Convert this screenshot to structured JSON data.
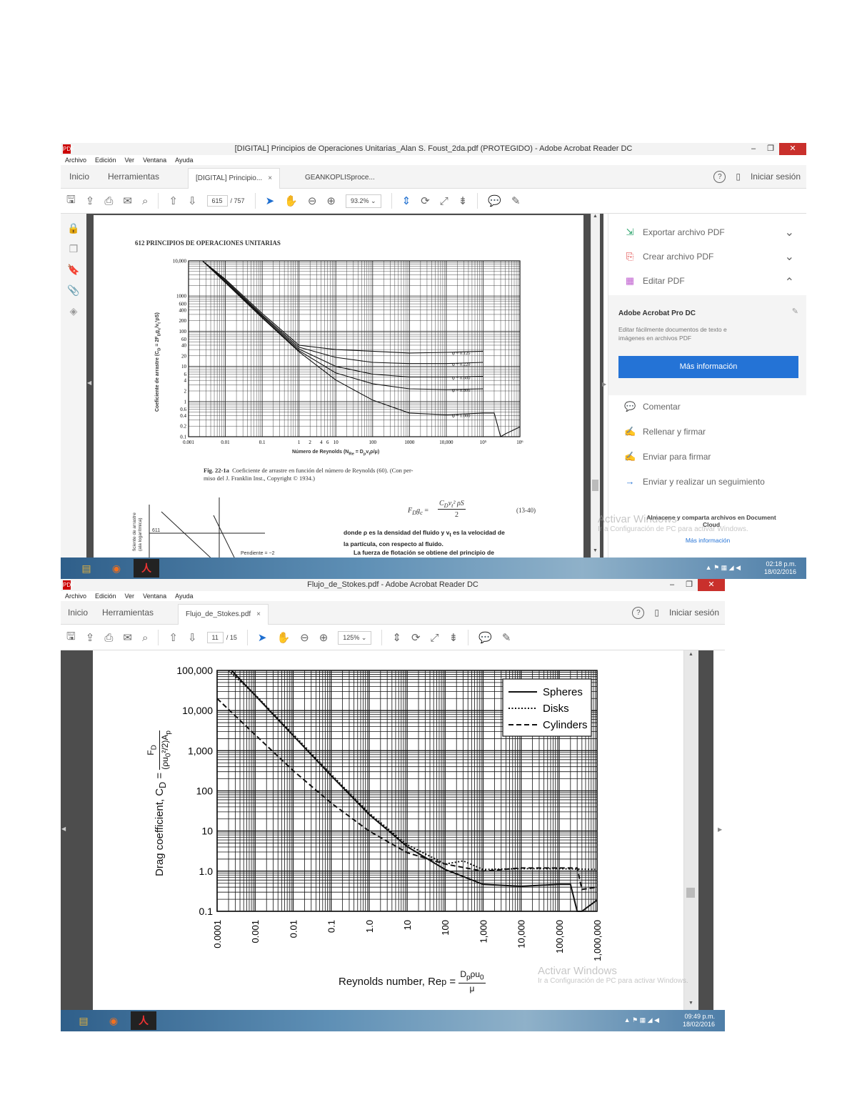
{
  "window1": {
    "title": "[DIGITAL] Principios de Operaciones Unitarias_Alan S. Foust_2da.pdf (PROTEGIDO) - Adobe Acrobat Reader DC",
    "menu": [
      "Archivo",
      "Edición",
      "Ver",
      "Ventana",
      "Ayuda"
    ],
    "nav": {
      "home": "Inicio",
      "tools": "Herramientas"
    },
    "tabs": [
      {
        "label": "[DIGITAL] Principio...",
        "close": "×"
      },
      {
        "label": "GEANKOPLISproce..."
      }
    ],
    "signin": "Iniciar sesión",
    "help": "?",
    "page_current": "615",
    "page_total": "/ 757",
    "zoom": "93.2%",
    "page": {
      "header": "612   PRINCIPIOS DE OPERACIONES UNITARIAS",
      "ylabel": "Coeficiente de arrastre (C",
      "ylabel_sub": "D",
      "ylabel_rest": " = 2F",
      "ylabel_frac": "D",
      "ylabel_end": "g",
      "ylabel_c": "c",
      "ylabel_den": "v",
      "ylabel_den2": "t",
      "ylabel_den3": "²ρS)",
      "xlabel": "Número de Reynolds (N",
      "xlabel_sub": "Re",
      "xlabel_rest": " = D",
      "xlabel_p": "p",
      "xlabel_v": "v",
      "xlabel_t": "t",
      "xlabel_end": "ρ/μ)",
      "caption_bold": "Fig. 22-1a",
      "caption": "Coeficiente de arrastre en función del número de Reynolds (60). (Con per-",
      "caption2": "miso del J. Franklin Inst., Copyright © 1934.)",
      "eq_lhs": "F",
      "eq_lhs_sub": "D",
      "eq_lhs_g": "g",
      "eq_lhs_c": "c",
      "eq_eq": "=",
      "eq_num": "C",
      "eq_num_sub": "D",
      "eq_num_v": "v",
      "eq_num_t": "t",
      "eq_num_rest": "² ρS",
      "eq_den": "2",
      "eq_no": "(13-40)",
      "text1": "donde ρ  es la densidad del fluido y v",
      "text1_sub": "t",
      "text1_rest": " es la velocidad de",
      "text2": "la partícula, con respecto al fluido.",
      "text3": "La fuerza de flotación se obtiene del principio de",
      "small_label": "611",
      "small_ylabel": "ficiente de arrastre",
      "small_ylabel2": "(ala logarítmica)",
      "slope": "Pendiente = −2"
    },
    "chart_data": {
      "type": "line",
      "x_scale": "log",
      "y_scale": "log",
      "xlim": [
        0.001,
        1000000
      ],
      "ylim": [
        0.1,
        10000
      ],
      "x_ticks": [
        0.001,
        0.01,
        0.1,
        1,
        2,
        4,
        6,
        10,
        100,
        1000,
        10000,
        100000,
        1000000
      ],
      "x_tick_labels": [
        "0.001",
        "0.01",
        "0.1",
        "1",
        "2",
        "4",
        "6",
        "10",
        "100",
        "1000",
        "10,000",
        "10⁵",
        "10⁶"
      ],
      "y_ticks": [
        0.1,
        0.2,
        0.4,
        0.6,
        1,
        2,
        4,
        6,
        10,
        20,
        40,
        60,
        100,
        200,
        400,
        600,
        1000,
        10000
      ],
      "y_tick_labels": [
        "0.1",
        "0.2",
        "0.4",
        "0.6",
        "1",
        "2",
        "4",
        "6",
        "10",
        "20",
        "40",
        "60",
        "100",
        "200",
        "400",
        "600",
        "1000",
        "10,000"
      ],
      "series": [
        {
          "name": "ψ = 0.125",
          "x": [
            0.0024,
            0.01,
            0.1,
            1,
            10,
            100,
            1000,
            10000,
            100000
          ],
          "y": [
            10000,
            3000,
            320,
            40,
            30,
            27,
            24,
            25,
            27
          ]
        },
        {
          "name": "ψ = 0.220",
          "x": [
            0.0024,
            0.01,
            0.1,
            1,
            10,
            100,
            1000,
            10000,
            100000
          ],
          "y": [
            10000,
            2800,
            290,
            35,
            18,
            13,
            12,
            12,
            13
          ]
        },
        {
          "name": "ψ = 0.600",
          "x": [
            0.0024,
            0.01,
            0.1,
            1,
            10,
            100,
            1000,
            10000,
            100000
          ],
          "y": [
            10000,
            2600,
            270,
            31,
            10,
            6,
            5,
            5,
            5.2
          ]
        },
        {
          "name": "ψ = 0.806",
          "x": [
            0.0024,
            0.01,
            0.1,
            1,
            10,
            100,
            1000,
            10000,
            100000
          ],
          "y": [
            10000,
            2500,
            250,
            28,
            6.5,
            3.2,
            2.3,
            2.2,
            2.3
          ]
        },
        {
          "name": "ψ = 1.000",
          "x": [
            0.0024,
            0.01,
            0.1,
            1,
            10,
            100,
            1000,
            10000,
            100000,
            200000,
            300000,
            400000,
            1000000
          ],
          "y": [
            10000,
            2400,
            240,
            26,
            4.1,
            1.1,
            0.47,
            0.42,
            0.47,
            0.47,
            0.1,
            0.12,
            0.19
          ]
        }
      ]
    },
    "right_panel": {
      "export": "Exportar archivo PDF",
      "create": "Crear archivo PDF",
      "edit": "Editar PDF",
      "promo_title": "Adobe Acrobat Pro DC",
      "promo_text1": "Editar fácilmente documentos de texto e",
      "promo_text2": "imágenes en archivos PDF",
      "promo_button": "Más información",
      "comment": "Comentar",
      "fill": "Rellenar y firmar",
      "send": "Enviar para firmar",
      "track": "Enviar y realizar un seguimiento",
      "store": "Almacene y comparta archivos en Document",
      "store2": "Cloud",
      "store_link": "Más información"
    },
    "watermark": {
      "title": "Activar Windows",
      "sub": "Ir a Configuración de PC para activar Windows."
    },
    "clock": {
      "time": "02:18 p.m.",
      "date": "18/02/2016"
    }
  },
  "window2": {
    "title": "Flujo_de_Stokes.pdf - Adobe Acrobat Reader DC",
    "menu": [
      "Archivo",
      "Edición",
      "Ver",
      "Ventana",
      "Ayuda"
    ],
    "nav": {
      "home": "Inicio",
      "tools": "Herramientas"
    },
    "tabs": [
      {
        "label": "Flujo_de_Stokes.pdf",
        "close": "×"
      }
    ],
    "signin": "Iniciar sesión",
    "help": "?",
    "page_current": "11",
    "page_total": "/ 15",
    "zoom": "125%",
    "chart_data": {
      "type": "line",
      "x_scale": "log",
      "y_scale": "log",
      "xlim": [
        0.0001,
        1000000
      ],
      "ylim": [
        0.1,
        100000
      ],
      "x_tick_labels": [
        "0.0001",
        "0.001",
        "0.01",
        "0.1",
        "1.0",
        "10",
        "100",
        "1,000",
        "10,000",
        "100,000",
        "1,000,000"
      ],
      "y_tick_labels": [
        "0.1",
        "1.0",
        "10",
        "100",
        "1,000",
        "10,000",
        "100,000"
      ],
      "ylabel": "Drag coefficient, C",
      "ylabel_sub": "D",
      "ylabel_eq": " = ",
      "ylabel_num": "F",
      "ylabel_num_sub": "D",
      "ylabel_den": "(ρu",
      "ylabel_den_sub": "0",
      "ylabel_den_rest": "²/2)A",
      "ylabel_den_p": "p",
      "xlabel": "Reynolds number, Re",
      "xlabel_sub": "p",
      "xlabel_eq": " = ",
      "xlabel_num": "D",
      "xlabel_num_p": "p",
      "xlabel_num_rest": "ρu",
      "xlabel_num_0": "0",
      "xlabel_den": "μ",
      "legend_position": "top-right",
      "series": [
        {
          "name": "Spheres",
          "style": "solid",
          "x": [
            0.00024,
            0.001,
            0.01,
            0.1,
            1,
            10,
            100,
            1000,
            10000,
            100000,
            200000,
            300000,
            400000,
            1000000
          ],
          "y": [
            100000,
            24000,
            2400,
            240,
            26,
            4.1,
            1.1,
            0.47,
            0.42,
            0.47,
            0.47,
            0.1,
            0.1,
            0.19
          ]
        },
        {
          "name": "Disks",
          "style": "dotted",
          "x": [
            0.0002,
            0.001,
            0.01,
            0.1,
            1,
            10,
            100,
            300,
            1000,
            10000,
            100000,
            1000000
          ],
          "y": [
            100000,
            25000,
            2600,
            260,
            28,
            4.6,
            1.5,
            1.8,
            1.1,
            1.15,
            1.15,
            1.1
          ]
        },
        {
          "name": "Cylinders",
          "style": "dashed",
          "x": [
            0.0001,
            0.001,
            0.01,
            0.1,
            1,
            10,
            100,
            1000,
            10000,
            100000,
            300000,
            400000,
            1000000
          ],
          "y": [
            20000,
            2500,
            320,
            50,
            10,
            2.9,
            1.5,
            1.0,
            1.2,
            1.2,
            1.2,
            0.35,
            0.4
          ]
        }
      ]
    },
    "watermark": {
      "title": "Activar Windows",
      "sub": "Ir a Configuración de PC para activar Windows."
    },
    "clock": {
      "time": "09:49 p.m.",
      "date": "18/02/2016"
    }
  },
  "icons": {
    "pdf": "PDF",
    "minimize": "–",
    "restore": "❐",
    "close": "✕",
    "explorer": "▤",
    "firefox": "◉",
    "acrobat": "人",
    "save": "🖫",
    "upload": "⇪",
    "print": "⎙",
    "mail": "✉",
    "search": "⌕",
    "page_up": "⇧",
    "page_down": "⇩",
    "pointer": "➤",
    "hand": "✋",
    "zoom_out": "⊖",
    "zoom_in": "⊕",
    "fit": "⇕",
    "rotate": "⟳",
    "full": "⤢",
    "scroll": "⇟",
    "comment": "💬",
    "pen": "✎",
    "lock": "🔒",
    "pages": "❐",
    "bookmark": "🔖",
    "attach": "📎",
    "layers": "◈",
    "chevron_down": "⌄",
    "chevron_up": "⌃",
    "export": "⇲",
    "create": "⎘",
    "edit": "▦",
    "fill": "✍",
    "send": "✍",
    "track": "→",
    "tray": "▲ ⚑ ▦ ◢ ◀",
    "mobile": "▯",
    "scroll_up": "▲",
    "scroll_down": "▼",
    "left_arrow": "◀",
    "right_arrow": "▶",
    "promo_close": "✎"
  }
}
